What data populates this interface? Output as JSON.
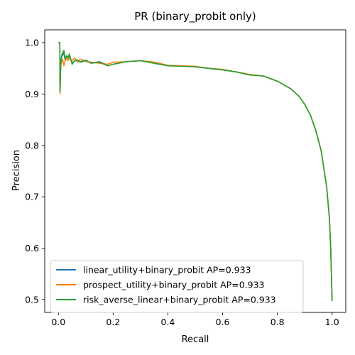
{
  "chart_data": {
    "type": "line",
    "title": "PR (binary_probit only)",
    "xlabel": "Recall",
    "ylabel": "Precision",
    "xlim": [
      -0.05,
      1.05
    ],
    "ylim": [
      0.475,
      1.025
    ],
    "xticks": [
      0.0,
      0.2,
      0.4,
      0.6,
      0.8,
      1.0
    ],
    "xtick_labels": [
      "0.0",
      "0.2",
      "0.4",
      "0.6",
      "0.8",
      "1.0"
    ],
    "yticks": [
      0.5,
      0.6,
      0.7,
      0.8,
      0.9,
      1.0
    ],
    "ytick_labels": [
      "0.5",
      "0.6",
      "0.7",
      "0.8",
      "0.9",
      "1.0"
    ],
    "grid": false,
    "legend_position": "lower-left",
    "series": [
      {
        "name": "linear_utility+binary_probit AP=0.933",
        "color": "#1f77b4",
        "x": [
          0.0,
          0.005,
          0.006,
          0.008,
          0.01,
          0.015,
          0.02,
          0.025,
          0.03,
          0.035,
          0.04,
          0.05,
          0.06,
          0.07,
          0.08,
          0.1,
          0.12,
          0.15,
          0.18,
          0.2,
          0.25,
          0.3,
          0.35,
          0.4,
          0.45,
          0.5,
          0.55,
          0.6,
          0.65,
          0.7,
          0.75,
          0.8,
          0.85,
          0.88,
          0.9,
          0.92,
          0.94,
          0.96,
          0.97,
          0.98,
          0.985,
          0.99,
          0.995,
          0.998,
          1.0
        ],
        "y": [
          1.0,
          1.0,
          0.905,
          0.95,
          0.97,
          0.975,
          0.98,
          0.965,
          0.975,
          0.97,
          0.975,
          0.96,
          0.965,
          0.965,
          0.962,
          0.965,
          0.96,
          0.963,
          0.955,
          0.958,
          0.963,
          0.965,
          0.96,
          0.955,
          0.955,
          0.953,
          0.95,
          0.947,
          0.943,
          0.938,
          0.935,
          0.925,
          0.91,
          0.895,
          0.88,
          0.86,
          0.83,
          0.79,
          0.755,
          0.72,
          0.69,
          0.66,
          0.6,
          0.54,
          0.497
        ]
      },
      {
        "name": "prospect_utility+binary_probit AP=0.933",
        "color": "#ff7f0e",
        "x": [
          0.0,
          0.005,
          0.006,
          0.008,
          0.01,
          0.015,
          0.02,
          0.025,
          0.03,
          0.035,
          0.04,
          0.05,
          0.06,
          0.07,
          0.08,
          0.1,
          0.12,
          0.15,
          0.18,
          0.2,
          0.25,
          0.3,
          0.35,
          0.4,
          0.45,
          0.5,
          0.55,
          0.6,
          0.65,
          0.7,
          0.75,
          0.8,
          0.85,
          0.88,
          0.9,
          0.92,
          0.94,
          0.96,
          0.97,
          0.98,
          0.985,
          0.99,
          0.995,
          0.998,
          1.0
        ],
        "y": [
          1.0,
          1.0,
          0.9,
          0.95,
          0.96,
          0.968,
          0.955,
          0.965,
          0.97,
          0.965,
          0.97,
          0.965,
          0.97,
          0.962,
          0.968,
          0.963,
          0.962,
          0.96,
          0.958,
          0.962,
          0.963,
          0.965,
          0.962,
          0.956,
          0.955,
          0.954,
          0.95,
          0.948,
          0.943,
          0.938,
          0.935,
          0.925,
          0.91,
          0.895,
          0.88,
          0.86,
          0.83,
          0.79,
          0.755,
          0.72,
          0.69,
          0.66,
          0.6,
          0.54,
          0.497
        ]
      },
      {
        "name": "risk_averse_linear+binary_probit AP=0.933",
        "color": "#2ca02c",
        "x": [
          0.0,
          0.005,
          0.006,
          0.008,
          0.01,
          0.015,
          0.02,
          0.025,
          0.03,
          0.035,
          0.04,
          0.05,
          0.06,
          0.07,
          0.08,
          0.1,
          0.12,
          0.15,
          0.18,
          0.2,
          0.25,
          0.3,
          0.35,
          0.4,
          0.45,
          0.5,
          0.55,
          0.6,
          0.65,
          0.7,
          0.75,
          0.8,
          0.85,
          0.88,
          0.9,
          0.92,
          0.94,
          0.96,
          0.97,
          0.98,
          0.985,
          0.99,
          0.995,
          0.998,
          1.0
        ],
        "y": [
          1.0,
          1.0,
          0.905,
          0.95,
          0.97,
          0.98,
          0.985,
          0.968,
          0.975,
          0.97,
          0.978,
          0.958,
          0.965,
          0.966,
          0.963,
          0.966,
          0.96,
          0.962,
          0.955,
          0.958,
          0.963,
          0.965,
          0.96,
          0.955,
          0.954,
          0.953,
          0.95,
          0.947,
          0.943,
          0.937,
          0.935,
          0.925,
          0.91,
          0.895,
          0.88,
          0.86,
          0.83,
          0.79,
          0.755,
          0.72,
          0.69,
          0.66,
          0.6,
          0.54,
          0.497
        ]
      }
    ]
  }
}
